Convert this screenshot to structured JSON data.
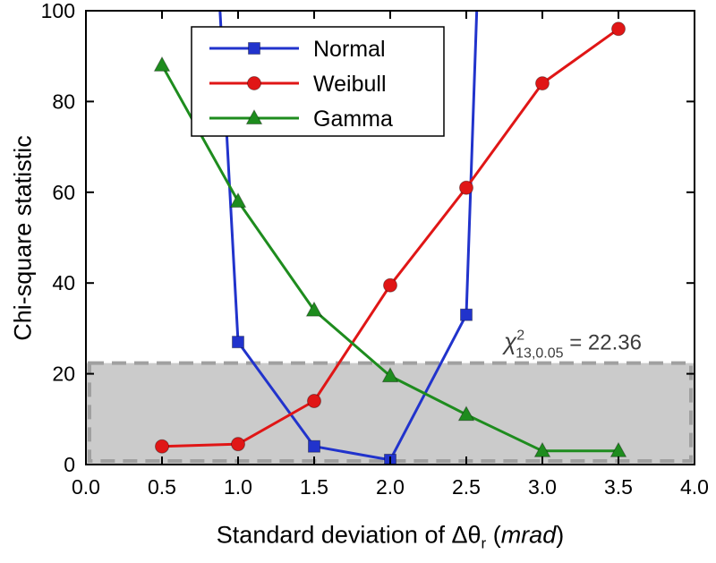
{
  "chart_data": {
    "type": "line",
    "title": "",
    "ylabel": "Chi-square statistic",
    "xlabel": "Standard deviation of Δθr (mrad)",
    "xlabel_parts": {
      "prefix": "Standard deviation of Δθ",
      "sub": "r",
      "mid": " (",
      "italic": "mrad",
      "suffix": ")"
    },
    "xlim": [
      0.0,
      4.0
    ],
    "ylim": [
      0,
      100
    ],
    "x_ticks": [
      0.0,
      0.5,
      1.0,
      1.5,
      2.0,
      2.5,
      3.0,
      3.5,
      4.0
    ],
    "x_tick_labels": [
      "0.0",
      "0.5",
      "1.0",
      "1.5",
      "2.0",
      "2.5",
      "3.0",
      "3.5",
      "4.0"
    ],
    "y_ticks": [
      0,
      20,
      40,
      60,
      80,
      100
    ],
    "y_tick_labels": [
      "0",
      "20",
      "40",
      "60",
      "80",
      "100"
    ],
    "grid": false,
    "legend_position": "top-center-left",
    "threshold": {
      "value": 22.36,
      "band_fill": "#cbcbcb",
      "line_color": "#a0a0a0",
      "label_base": "χ",
      "label_sup": "2",
      "label_sub": "13,0.05",
      "label_rhs": " = 22.36"
    },
    "series": [
      {
        "name": "Normal",
        "color": "#2133cc",
        "marker": "square",
        "x": [
          1.0,
          1.5,
          2.0,
          2.5
        ],
        "y": [
          27,
          4,
          1,
          33
        ],
        "exits_top_at": [
          0.8,
          2.62
        ]
      },
      {
        "name": "Weibull",
        "color": "#e01616",
        "marker": "circle",
        "x": [
          0.5,
          1.0,
          1.5,
          2.0,
          2.5,
          3.0,
          3.5
        ],
        "y": [
          4,
          4.5,
          14,
          39.5,
          61,
          84,
          96
        ]
      },
      {
        "name": "Gamma",
        "color": "#1e8c1e",
        "marker": "triangle",
        "x": [
          0.5,
          1.0,
          1.5,
          2.0,
          2.5,
          3.0,
          3.5
        ],
        "y": [
          88,
          58,
          34,
          19.5,
          11,
          3,
          3
        ]
      }
    ]
  }
}
